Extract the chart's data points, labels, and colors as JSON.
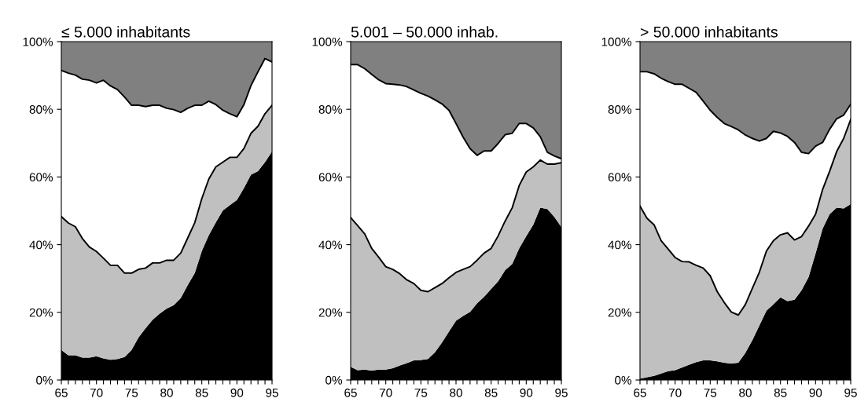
{
  "chart_data": [
    {
      "type": "area",
      "stacked": true,
      "title": "≤ 5.000 inhabitants",
      "x": [
        65,
        66,
        67,
        68,
        69,
        70,
        71,
        72,
        73,
        74,
        75,
        76,
        77,
        78,
        79,
        80,
        81,
        82,
        83,
        84,
        85,
        86,
        87,
        88,
        89,
        90,
        91,
        92,
        93,
        94,
        95
      ],
      "series": [
        {
          "color": "#000000",
          "values": [
            8.9,
            7.3,
            7.3,
            6.6,
            6.6,
            7.0,
            6.4,
            6.0,
            6.2,
            6.8,
            8.9,
            12.6,
            15.3,
            17.8,
            19.6,
            21.1,
            22.1,
            24.2,
            28.1,
            31.6,
            38.1,
            42.8,
            46.6,
            50.1,
            51.7,
            53.2,
            56.7,
            60.7,
            61.7,
            64.4,
            67.5
          ]
        },
        {
          "color": "#c0c0c0",
          "values": [
            39.4,
            39.1,
            38.0,
            35.2,
            32.7,
            31.0,
            29.6,
            27.9,
            27.7,
            24.8,
            22.7,
            20.1,
            17.8,
            16.8,
            15.0,
            14.3,
            13.3,
            13.3,
            13.9,
            14.9,
            15.5,
            16.6,
            16.4,
            14.3,
            14.1,
            12.6,
            11.7,
            12.2,
            13.3,
            14.3,
            13.7
          ]
        },
        {
          "color": "#ffffff",
          "values": [
            43.2,
            44.3,
            44.8,
            47.1,
            49.3,
            49.8,
            52.6,
            53.0,
            51.9,
            52.0,
            49.6,
            48.5,
            47.7,
            46.6,
            46.6,
            44.9,
            44.5,
            41.6,
            38.3,
            34.7,
            27.6,
            23.0,
            18.4,
            15.3,
            12.9,
            12.0,
            13.0,
            14.1,
            16.1,
            16.3,
            12.8
          ]
        },
        {
          "color": "#808080",
          "values": [
            8.5,
            9.3,
            9.9,
            11.1,
            11.4,
            12.2,
            11.4,
            13.1,
            14.2,
            16.4,
            18.8,
            18.8,
            19.2,
            18.8,
            18.8,
            19.7,
            20.1,
            20.9,
            19.7,
            18.8,
            18.8,
            17.6,
            18.6,
            20.3,
            21.3,
            22.2,
            18.6,
            13.0,
            8.9,
            5.0,
            6.0
          ]
        }
      ],
      "xlim": [
        65,
        95
      ],
      "xticks": [
        {
          "value": 65,
          "label": "65"
        },
        {
          "value": 66,
          "label": null
        },
        {
          "value": 67,
          "label": null
        },
        {
          "value": 68,
          "label": null
        },
        {
          "value": 69,
          "label": null
        },
        {
          "value": 70,
          "label": "70"
        },
        {
          "value": 71,
          "label": null
        },
        {
          "value": 72,
          "label": null
        },
        {
          "value": 73,
          "label": null
        },
        {
          "value": 74,
          "label": null
        },
        {
          "value": 75,
          "label": "75"
        },
        {
          "value": 76,
          "label": null
        },
        {
          "value": 77,
          "label": null
        },
        {
          "value": 78,
          "label": null
        },
        {
          "value": 79,
          "label": null
        },
        {
          "value": 80,
          "label": "80"
        },
        {
          "value": 81,
          "label": null
        },
        {
          "value": 82,
          "label": null
        },
        {
          "value": 83,
          "label": null
        },
        {
          "value": 84,
          "label": null
        },
        {
          "value": 85,
          "label": "85"
        },
        {
          "value": 86,
          "label": null
        },
        {
          "value": 87,
          "label": null
        },
        {
          "value": 88,
          "label": null
        },
        {
          "value": 89,
          "label": null
        },
        {
          "value": 90,
          "label": "90"
        },
        {
          "value": 91,
          "label": null
        },
        {
          "value": 92,
          "label": null
        },
        {
          "value": 93,
          "label": null
        },
        {
          "value": 94,
          "label": null
        },
        {
          "value": 95,
          "label": "95"
        }
      ],
      "ylim": [
        0,
        100
      ],
      "yticks": [
        {
          "value": 0,
          "label": "0%"
        },
        {
          "value": 20,
          "label": "20%"
        },
        {
          "value": 40,
          "label": "40%"
        },
        {
          "value": 60,
          "label": "60%"
        },
        {
          "value": 80,
          "label": "80%"
        },
        {
          "value": 100,
          "label": "100%"
        }
      ],
      "grid": false
    },
    {
      "type": "area",
      "stacked": true,
      "title": "5.001 – 50.000 inhab.",
      "x": [
        65,
        66,
        67,
        68,
        69,
        70,
        71,
        72,
        73,
        74,
        75,
        76,
        77,
        78,
        79,
        80,
        81,
        82,
        83,
        84,
        85,
        86,
        87,
        88,
        89,
        90,
        91,
        92,
        93,
        94,
        95
      ],
      "series": [
        {
          "color": "#000000",
          "values": [
            3.9,
            2.9,
            3.1,
            2.8,
            3.1,
            3.1,
            3.5,
            4.3,
            5.0,
            5.8,
            5.9,
            6.2,
            8.2,
            11.1,
            14.3,
            17.5,
            18.9,
            20.1,
            22.7,
            24.6,
            26.9,
            29.2,
            32.5,
            34.3,
            38.9,
            42.5,
            45.9,
            50.9,
            50.5,
            48.2,
            45.2
          ]
        },
        {
          "color": "#c0c0c0",
          "values": [
            44.1,
            42.7,
            40.1,
            36.1,
            33.2,
            30.4,
            29.2,
            27.1,
            24.6,
            22.7,
            20.6,
            19.9,
            19.1,
            17.4,
            15.9,
            14.3,
            13.8,
            13.4,
            12.7,
            12.9,
            12.0,
            13.4,
            14.5,
            16.6,
            18.6,
            19.0,
            17.1,
            14.1,
            13.3,
            15.6,
            19.0
          ]
        },
        {
          "color": "#ffffff",
          "values": [
            45.2,
            47.6,
            48.8,
            51.4,
            52.4,
            54.1,
            54.7,
            55.8,
            57.1,
            57.2,
            58.2,
            57.8,
            55.5,
            53.1,
            49.5,
            44.0,
            39.1,
            34.9,
            31.0,
            30.2,
            28.8,
            27.3,
            25.5,
            22.0,
            18.3,
            14.3,
            11.5,
            6.9,
            3.5,
            2.4,
            1.2
          ]
        },
        {
          "color": "#808080",
          "values": [
            6.8,
            6.8,
            8.0,
            9.7,
            11.3,
            12.4,
            12.6,
            12.8,
            13.3,
            14.3,
            15.3,
            16.1,
            17.2,
            18.4,
            20.3,
            24.2,
            28.2,
            31.6,
            33.6,
            32.3,
            32.3,
            30.1,
            27.5,
            27.1,
            24.2,
            24.2,
            25.5,
            28.1,
            32.7,
            33.8,
            34.6
          ]
        }
      ],
      "xlim": [
        65,
        95
      ],
      "xticks": [
        {
          "value": 65,
          "label": "65"
        },
        {
          "value": 66,
          "label": null
        },
        {
          "value": 67,
          "label": null
        },
        {
          "value": 68,
          "label": null
        },
        {
          "value": 69,
          "label": null
        },
        {
          "value": 70,
          "label": "70"
        },
        {
          "value": 71,
          "label": null
        },
        {
          "value": 72,
          "label": null
        },
        {
          "value": 73,
          "label": null
        },
        {
          "value": 74,
          "label": null
        },
        {
          "value": 75,
          "label": "75"
        },
        {
          "value": 76,
          "label": null
        },
        {
          "value": 77,
          "label": null
        },
        {
          "value": 78,
          "label": null
        },
        {
          "value": 79,
          "label": null
        },
        {
          "value": 80,
          "label": "80"
        },
        {
          "value": 81,
          "label": null
        },
        {
          "value": 82,
          "label": null
        },
        {
          "value": 83,
          "label": null
        },
        {
          "value": 84,
          "label": null
        },
        {
          "value": 85,
          "label": "85"
        },
        {
          "value": 86,
          "label": null
        },
        {
          "value": 87,
          "label": null
        },
        {
          "value": 88,
          "label": null
        },
        {
          "value": 89,
          "label": null
        },
        {
          "value": 90,
          "label": "90"
        },
        {
          "value": 91,
          "label": null
        },
        {
          "value": 92,
          "label": null
        },
        {
          "value": 93,
          "label": null
        },
        {
          "value": 94,
          "label": null
        },
        {
          "value": 95,
          "label": "95"
        }
      ],
      "ylim": [
        0,
        100
      ],
      "yticks": [
        {
          "value": 0,
          "label": "0%"
        },
        {
          "value": 20,
          "label": "20%"
        },
        {
          "value": 40,
          "label": "40%"
        },
        {
          "value": 60,
          "label": "60%"
        },
        {
          "value": 80,
          "label": "80%"
        },
        {
          "value": 100,
          "label": "100%"
        }
      ],
      "grid": false
    },
    {
      "type": "area",
      "stacked": true,
      "title": "> 50.000 inhabitants",
      "x": [
        65,
        66,
        67,
        68,
        69,
        70,
        71,
        72,
        73,
        74,
        75,
        76,
        77,
        78,
        79,
        80,
        81,
        82,
        83,
        84,
        85,
        86,
        87,
        88,
        89,
        90,
        91,
        92,
        93,
        94,
        95
      ],
      "series": [
        {
          "color": "#000000",
          "values": [
            0.4,
            0.8,
            1.2,
            1.9,
            2.6,
            2.9,
            3.7,
            4.5,
            5.3,
            5.8,
            5.8,
            5.5,
            5.1,
            4.9,
            5.1,
            8.0,
            11.8,
            16.1,
            20.5,
            22.4,
            24.4,
            23.3,
            23.7,
            26.5,
            30.4,
            37.4,
            44.7,
            49.0,
            50.9,
            50.7,
            52.0
          ]
        },
        {
          "color": "#c0c0c0",
          "values": [
            51.0,
            47.0,
            44.7,
            39.3,
            36.1,
            33.3,
            31.3,
            30.4,
            28.6,
            27.3,
            25.0,
            20.6,
            17.8,
            15.2,
            14.1,
            14.3,
            15.3,
            15.8,
            17.6,
            18.8,
            18.5,
            20.2,
            17.7,
            15.9,
            15.1,
            11.6,
            11.6,
            12.7,
            16.6,
            20.7,
            25.0
          ]
        },
        {
          "color": "#ffffff",
          "values": [
            39.7,
            43.3,
            44.6,
            48.0,
            49.5,
            51.2,
            52.4,
            51.3,
            51.1,
            49.3,
            48.9,
            51.5,
            52.9,
            54.8,
            54.7,
            50.1,
            44.3,
            38.7,
            33.3,
            32.3,
            30.1,
            28.5,
            28.8,
            24.9,
            21.4,
            20.1,
            13.9,
            12.4,
            9.7,
            6.9,
            4.5
          ]
        },
        {
          "color": "#808080",
          "values": [
            8.9,
            8.9,
            9.5,
            10.8,
            11.8,
            12.6,
            12.6,
            13.8,
            15.0,
            17.6,
            20.3,
            22.4,
            24.2,
            25.1,
            26.1,
            27.6,
            28.6,
            29.4,
            28.6,
            26.5,
            27.0,
            28.0,
            29.8,
            32.7,
            33.1,
            30.9,
            29.8,
            25.9,
            22.8,
            21.7,
            18.5
          ]
        }
      ],
      "xlim": [
        65,
        95
      ],
      "xticks": [
        {
          "value": 65,
          "label": "65"
        },
        {
          "value": 66,
          "label": null
        },
        {
          "value": 67,
          "label": null
        },
        {
          "value": 68,
          "label": null
        },
        {
          "value": 69,
          "label": null
        },
        {
          "value": 70,
          "label": "70"
        },
        {
          "value": 71,
          "label": null
        },
        {
          "value": 72,
          "label": null
        },
        {
          "value": 73,
          "label": null
        },
        {
          "value": 74,
          "label": null
        },
        {
          "value": 75,
          "label": "75"
        },
        {
          "value": 76,
          "label": null
        },
        {
          "value": 77,
          "label": null
        },
        {
          "value": 78,
          "label": null
        },
        {
          "value": 79,
          "label": null
        },
        {
          "value": 80,
          "label": "80"
        },
        {
          "value": 81,
          "label": null
        },
        {
          "value": 82,
          "label": null
        },
        {
          "value": 83,
          "label": null
        },
        {
          "value": 84,
          "label": null
        },
        {
          "value": 85,
          "label": "85"
        },
        {
          "value": 86,
          "label": null
        },
        {
          "value": 87,
          "label": null
        },
        {
          "value": 88,
          "label": null
        },
        {
          "value": 89,
          "label": null
        },
        {
          "value": 90,
          "label": "90"
        },
        {
          "value": 91,
          "label": null
        },
        {
          "value": 92,
          "label": null
        },
        {
          "value": 93,
          "label": null
        },
        {
          "value": 94,
          "label": null
        },
        {
          "value": 95,
          "label": "95"
        }
      ],
      "ylim": [
        0,
        100
      ],
      "yticks": [
        {
          "value": 0,
          "label": "0%"
        },
        {
          "value": 20,
          "label": "20%"
        },
        {
          "value": 40,
          "label": "40%"
        },
        {
          "value": 60,
          "label": "60%"
        },
        {
          "value": 80,
          "label": "80%"
        },
        {
          "value": 100,
          "label": "100%"
        }
      ],
      "grid": false
    }
  ]
}
